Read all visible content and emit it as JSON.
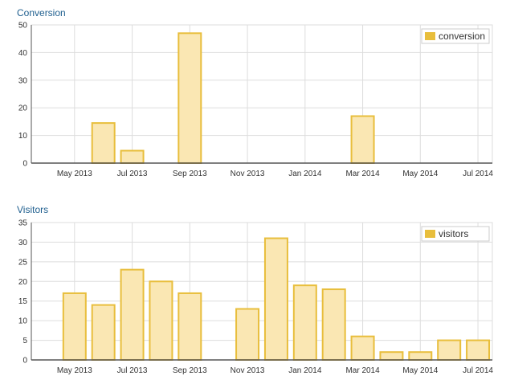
{
  "colors": {
    "bar_fill": "#fae7b3",
    "bar_stroke": "#e8be3c",
    "legend_swatch": "#e8be3c",
    "grid": "#dddddd",
    "axis": "#555555",
    "title": "#1f5f8f"
  },
  "chart_data": [
    {
      "type": "bar",
      "title": "Conversion",
      "legend": {
        "label": "conversion",
        "placement": "top-right"
      },
      "x_tick_labels": [
        "May 2013",
        "Jul 2013",
        "Sep 2013",
        "Nov 2013",
        "Jan 2014",
        "Mar 2014",
        "May 2014",
        "Jul 2014"
      ],
      "categories": [
        "Apr 2013",
        "May 2013",
        "Jun 2013",
        "Jul 2013",
        "Aug 2013",
        "Sep 2013",
        "Oct 2013",
        "Nov 2013",
        "Dec 2013",
        "Jan 2014",
        "Feb 2014",
        "Mar 2014",
        "Apr 2014",
        "May 2014",
        "Jun 2014",
        "Jul 2014"
      ],
      "values": [
        0,
        0,
        14.5,
        4.5,
        0,
        47,
        0,
        0,
        0,
        0,
        0,
        17,
        0,
        0,
        0,
        0
      ],
      "y_ticks": [
        0,
        10,
        20,
        30,
        40,
        50
      ],
      "ylim": [
        0,
        50
      ],
      "grid": true
    },
    {
      "type": "bar",
      "title": "Visitors",
      "legend": {
        "label": "visitors",
        "placement": "top-right"
      },
      "x_tick_labels": [
        "May 2013",
        "Jul 2013",
        "Sep 2013",
        "Nov 2013",
        "Jan 2014",
        "Mar 2014",
        "May 2014",
        "Jul 2014"
      ],
      "categories": [
        "Apr 2013",
        "May 2013",
        "Jun 2013",
        "Jul 2013",
        "Aug 2013",
        "Sep 2013",
        "Oct 2013",
        "Nov 2013",
        "Dec 2013",
        "Jan 2014",
        "Feb 2014",
        "Mar 2014",
        "Apr 2014",
        "May 2014",
        "Jun 2014",
        "Jul 2014"
      ],
      "values": [
        0,
        17,
        14,
        23,
        20,
        17,
        0,
        13,
        31,
        19,
        18,
        6,
        2,
        2,
        5,
        5
      ],
      "y_ticks": [
        0,
        5,
        10,
        15,
        20,
        25,
        30,
        35
      ],
      "ylim": [
        0,
        35
      ],
      "grid": true
    }
  ]
}
